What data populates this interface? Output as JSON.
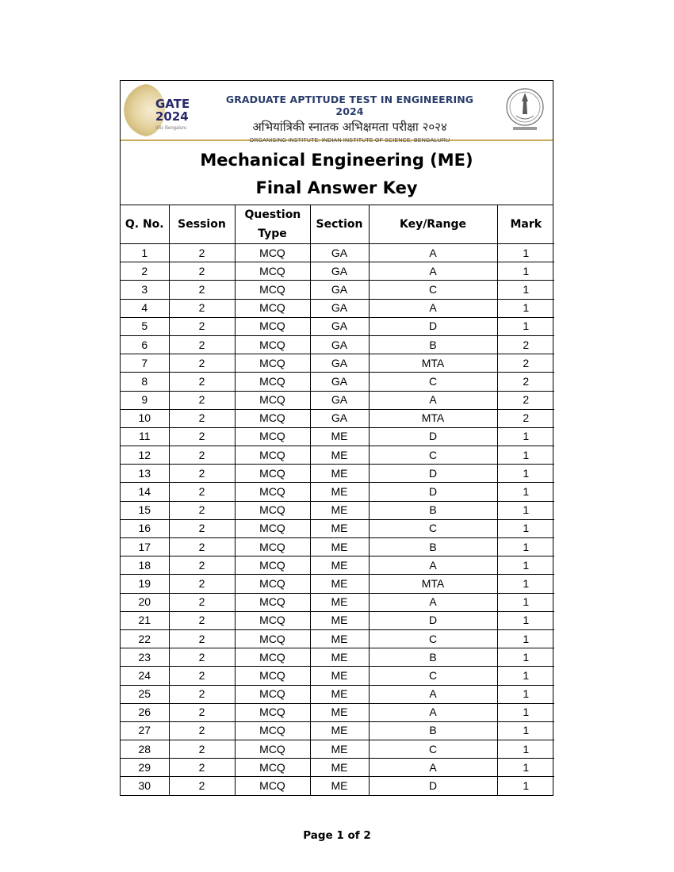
{
  "banner": {
    "logo_text": "GATE 2024",
    "logo_subtext": "IISc Bengaluru",
    "title": "GRADUATE APTITUDE TEST IN ENGINEERING 2024",
    "title_hindi": "अभियांत्रिकी स्नातक अभिक्षमता परीक्षा २०२४",
    "organiser": "ORGANISING INSTITUTE: INDIAN INSTITUTE OF SCIENCE, BENGALURU"
  },
  "document": {
    "title_line1": "Mechanical Engineering (ME)",
    "title_line2": "Final Answer Key"
  },
  "table": {
    "headers": [
      "Q. No.",
      "Session",
      "Question Type",
      "Section",
      "Key/Range",
      "Mark"
    ],
    "rows": [
      [
        "1",
        "2",
        "MCQ",
        "GA",
        "A",
        "1"
      ],
      [
        "2",
        "2",
        "MCQ",
        "GA",
        "A",
        "1"
      ],
      [
        "3",
        "2",
        "MCQ",
        "GA",
        "C",
        "1"
      ],
      [
        "4",
        "2",
        "MCQ",
        "GA",
        "A",
        "1"
      ],
      [
        "5",
        "2",
        "MCQ",
        "GA",
        "D",
        "1"
      ],
      [
        "6",
        "2",
        "MCQ",
        "GA",
        "B",
        "2"
      ],
      [
        "7",
        "2",
        "MCQ",
        "GA",
        "MTA",
        "2"
      ],
      [
        "8",
        "2",
        "MCQ",
        "GA",
        "C",
        "2"
      ],
      [
        "9",
        "2",
        "MCQ",
        "GA",
        "A",
        "2"
      ],
      [
        "10",
        "2",
        "MCQ",
        "GA",
        "MTA",
        "2"
      ],
      [
        "11",
        "2",
        "MCQ",
        "ME",
        "D",
        "1"
      ],
      [
        "12",
        "2",
        "MCQ",
        "ME",
        "C",
        "1"
      ],
      [
        "13",
        "2",
        "MCQ",
        "ME",
        "D",
        "1"
      ],
      [
        "14",
        "2",
        "MCQ",
        "ME",
        "D",
        "1"
      ],
      [
        "15",
        "2",
        "MCQ",
        "ME",
        "B",
        "1"
      ],
      [
        "16",
        "2",
        "MCQ",
        "ME",
        "C",
        "1"
      ],
      [
        "17",
        "2",
        "MCQ",
        "ME",
        "B",
        "1"
      ],
      [
        "18",
        "2",
        "MCQ",
        "ME",
        "A",
        "1"
      ],
      [
        "19",
        "2",
        "MCQ",
        "ME",
        "MTA",
        "1"
      ],
      [
        "20",
        "2",
        "MCQ",
        "ME",
        "A",
        "1"
      ],
      [
        "21",
        "2",
        "MCQ",
        "ME",
        "D",
        "1"
      ],
      [
        "22",
        "2",
        "MCQ",
        "ME",
        "C",
        "1"
      ],
      [
        "23",
        "2",
        "MCQ",
        "ME",
        "B",
        "1"
      ],
      [
        "24",
        "2",
        "MCQ",
        "ME",
        "C",
        "1"
      ],
      [
        "25",
        "2",
        "MCQ",
        "ME",
        "A",
        "1"
      ],
      [
        "26",
        "2",
        "MCQ",
        "ME",
        "A",
        "1"
      ],
      [
        "27",
        "2",
        "MCQ",
        "ME",
        "B",
        "1"
      ],
      [
        "28",
        "2",
        "MCQ",
        "ME",
        "C",
        "1"
      ],
      [
        "29",
        "2",
        "MCQ",
        "ME",
        "A",
        "1"
      ],
      [
        "30",
        "2",
        "MCQ",
        "ME",
        "D",
        "1"
      ]
    ]
  },
  "footer": {
    "page_label": "Page 1 of 2"
  },
  "colors": {
    "banner_title": "#2a3d6b",
    "banner_rule": "#c9a957"
  },
  "icons": {
    "left_logo": "gate-2024-logo",
    "right_logo": "iisc-seal"
  }
}
